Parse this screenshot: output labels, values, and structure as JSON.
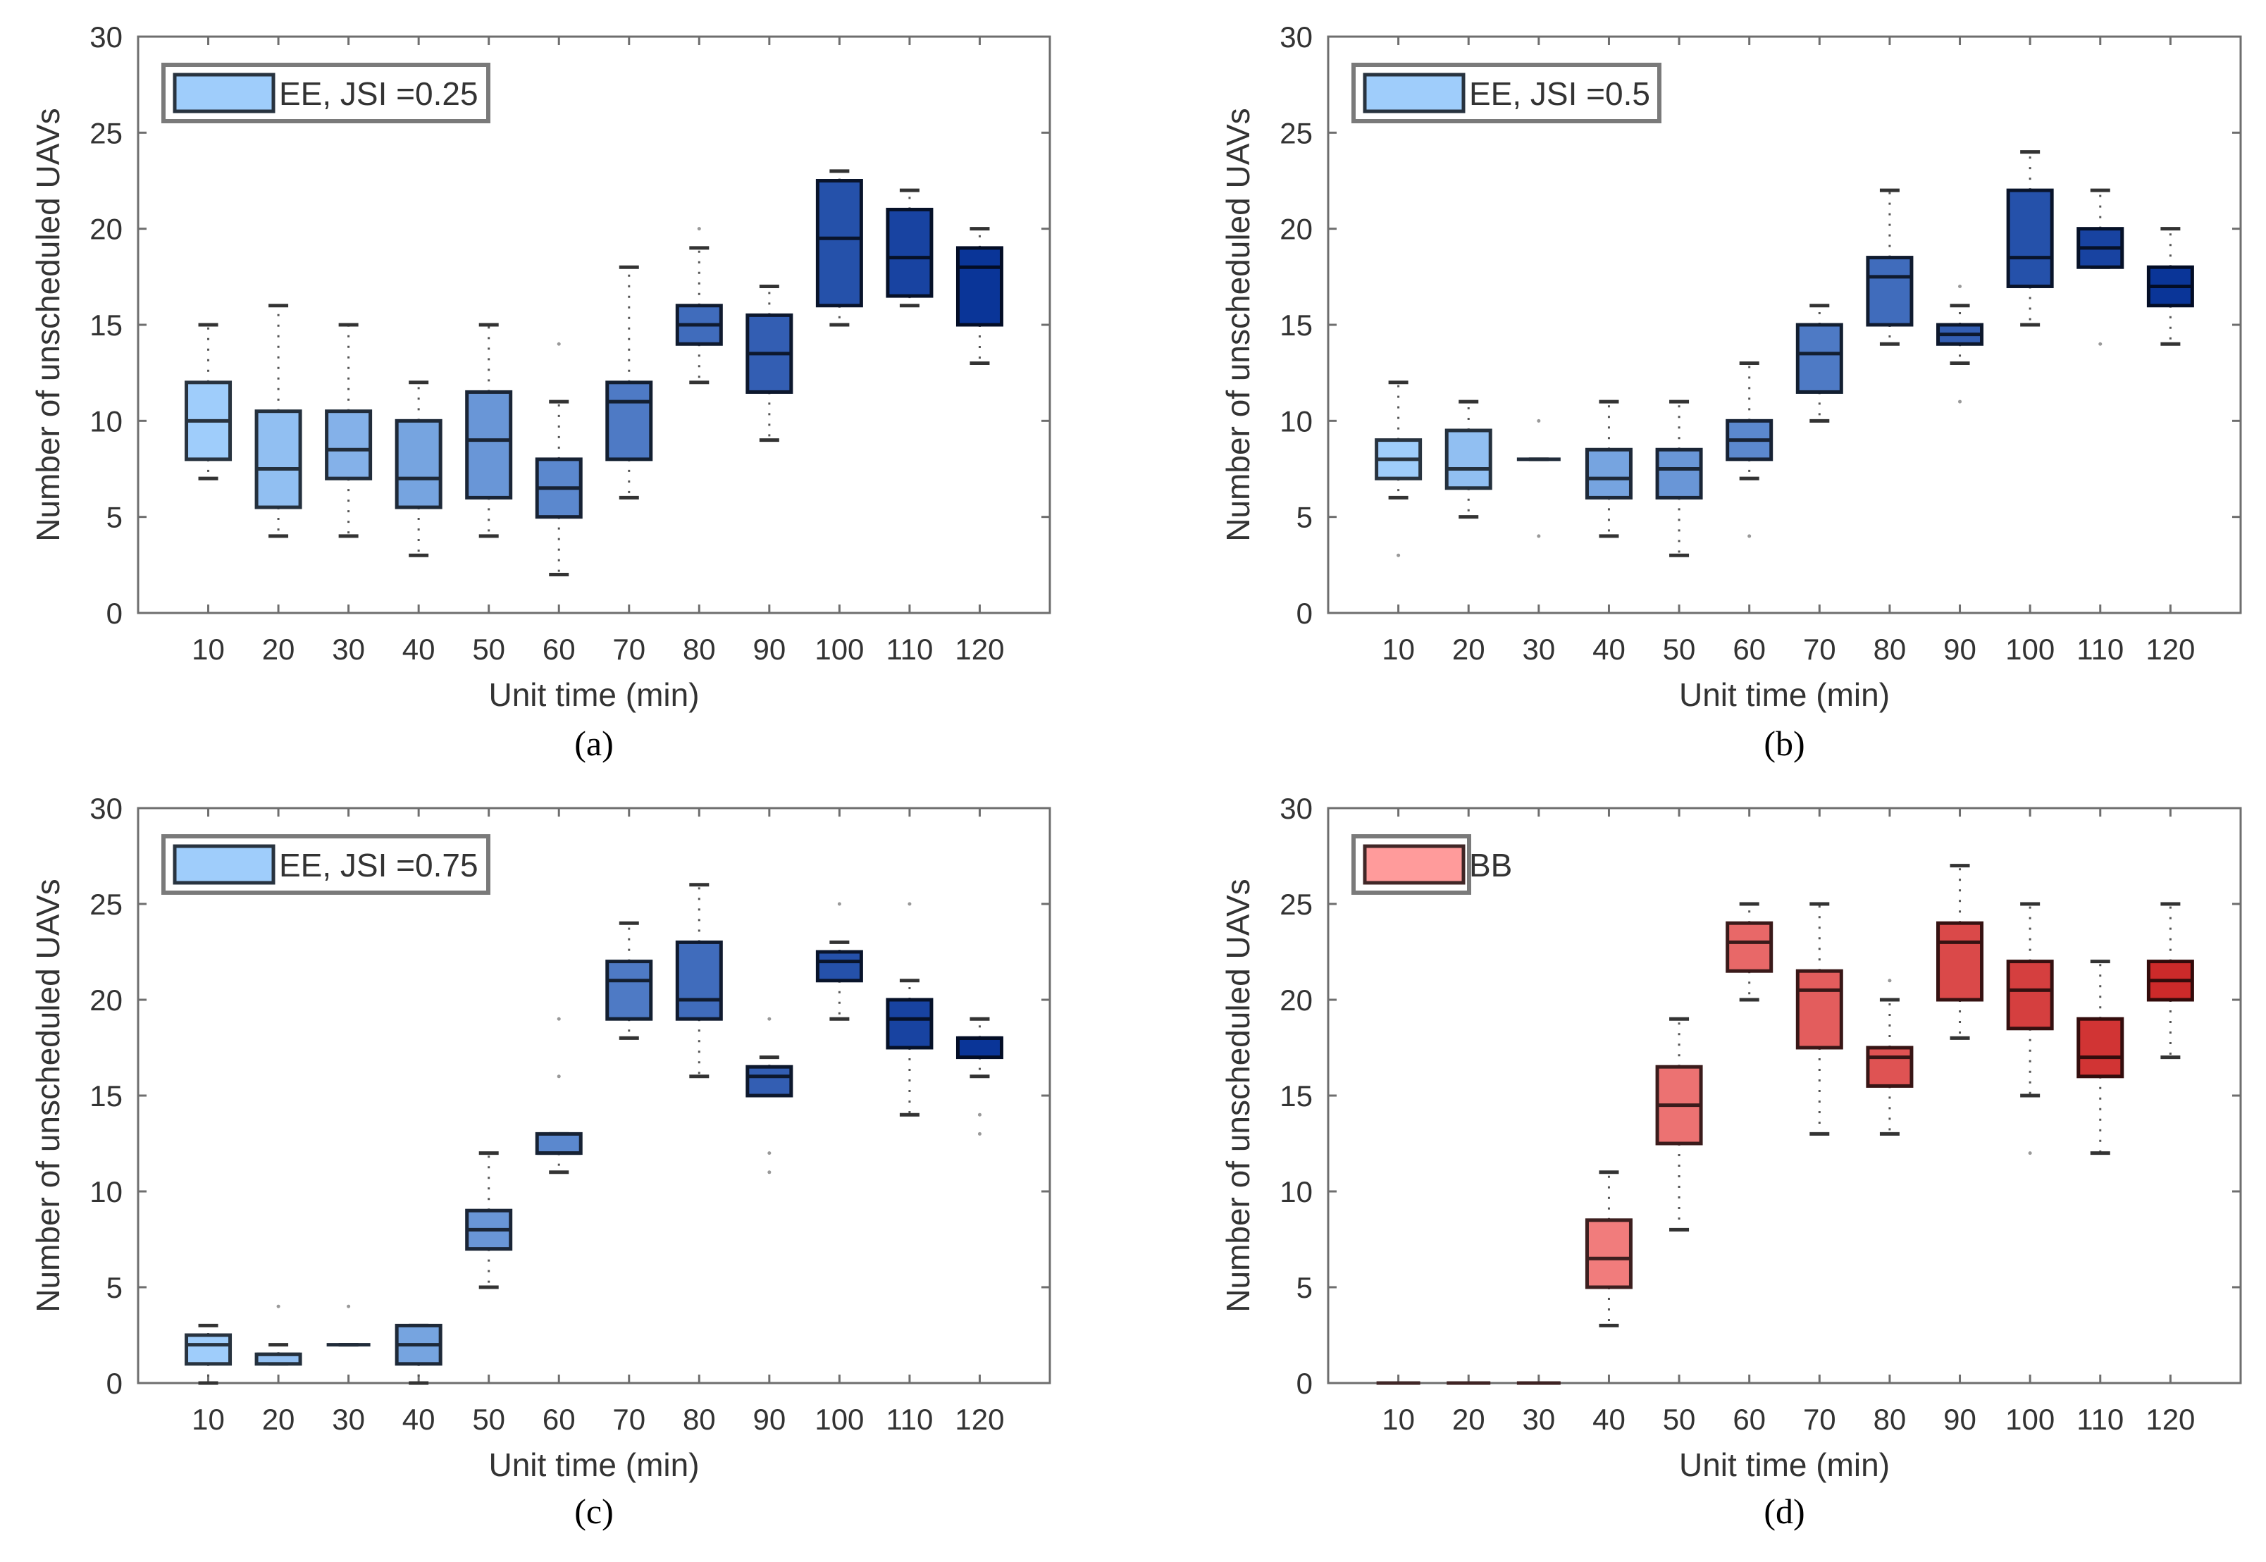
{
  "chart_data": [
    {
      "type": "box",
      "panel_label": "(a)",
      "legend": "EE, JSI =0.25",
      "legend_placement": "top-left",
      "xlabel": "Unit time (min)",
      "ylabel": "Number of unscheduled UAVs",
      "ylim": [
        0,
        30
      ],
      "yticks": [
        0,
        5,
        10,
        15,
        20,
        25,
        30
      ],
      "categories": [
        "10",
        "20",
        "30",
        "40",
        "50",
        "60",
        "70",
        "80",
        "90",
        "100",
        "110",
        "120"
      ],
      "boxes": [
        {
          "low": 7,
          "q1": 8,
          "median": 10,
          "q3": 12,
          "high": 15,
          "outliers": []
        },
        {
          "low": 4,
          "q1": 5.5,
          "median": 7.5,
          "q3": 10.5,
          "high": 16,
          "outliers": []
        },
        {
          "low": 4,
          "q1": 7,
          "median": 8.5,
          "q3": 10.5,
          "high": 15,
          "outliers": []
        },
        {
          "low": 3,
          "q1": 5.5,
          "median": 7,
          "q3": 10,
          "high": 12,
          "outliers": []
        },
        {
          "low": 4,
          "q1": 6,
          "median": 9,
          "q3": 11.5,
          "high": 15,
          "outliers": []
        },
        {
          "low": 2,
          "q1": 5,
          "median": 6.5,
          "q3": 8,
          "high": 11,
          "outliers": [
            14
          ]
        },
        {
          "low": 6,
          "q1": 8,
          "median": 11,
          "q3": 12,
          "high": 18,
          "outliers": []
        },
        {
          "low": 12,
          "q1": 14,
          "median": 15,
          "q3": 16,
          "high": 19,
          "outliers": [
            20
          ]
        },
        {
          "low": 9,
          "q1": 11.5,
          "median": 13.5,
          "q3": 15.5,
          "high": 17,
          "outliers": []
        },
        {
          "low": 15,
          "q1": 16,
          "median": 19.5,
          "q3": 22.5,
          "high": 23,
          "outliers": []
        },
        {
          "low": 16,
          "q1": 16.5,
          "median": 18.5,
          "q3": 21,
          "high": 22,
          "outliers": []
        },
        {
          "low": 13,
          "q1": 15,
          "median": 18,
          "q3": 19,
          "high": 20,
          "outliers": []
        }
      ],
      "color_light": "#9fcdfb",
      "color_dark": "#0a3598"
    },
    {
      "type": "box",
      "panel_label": "(b)",
      "legend": "EE, JSI =0.5",
      "legend_placement": "top-left",
      "xlabel": "Unit time (min)",
      "ylabel": "Number of unscheduled UAVs",
      "ylim": [
        0,
        30
      ],
      "yticks": [
        0,
        5,
        10,
        15,
        20,
        25,
        30
      ],
      "categories": [
        "10",
        "20",
        "30",
        "40",
        "50",
        "60",
        "70",
        "80",
        "90",
        "100",
        "110",
        "120"
      ],
      "boxes": [
        {
          "low": 6,
          "q1": 7,
          "median": 8,
          "q3": 9,
          "high": 12,
          "outliers": [
            3
          ]
        },
        {
          "low": 5,
          "q1": 6.5,
          "median": 7.5,
          "q3": 9.5,
          "high": 11,
          "outliers": []
        },
        {
          "low": 8,
          "q1": 8,
          "median": 8,
          "q3": 8,
          "high": 8,
          "outliers": [
            10,
            4
          ]
        },
        {
          "low": 4,
          "q1": 6,
          "median": 7,
          "q3": 8.5,
          "high": 11,
          "outliers": []
        },
        {
          "low": 3,
          "q1": 6,
          "median": 7.5,
          "q3": 8.5,
          "high": 11,
          "outliers": []
        },
        {
          "low": 7,
          "q1": 8,
          "median": 9,
          "q3": 10,
          "high": 13,
          "outliers": [
            4
          ]
        },
        {
          "low": 10,
          "q1": 11.5,
          "median": 13.5,
          "q3": 15,
          "high": 16,
          "outliers": []
        },
        {
          "low": 14,
          "q1": 15,
          "median": 17.5,
          "q3": 18.5,
          "high": 22,
          "outliers": []
        },
        {
          "low": 13,
          "q1": 14,
          "median": 14.5,
          "q3": 15,
          "high": 16,
          "outliers": [
            11,
            17
          ]
        },
        {
          "low": 15,
          "q1": 17,
          "median": 18.5,
          "q3": 22,
          "high": 24,
          "outliers": []
        },
        {
          "low": 18,
          "q1": 18,
          "median": 19,
          "q3": 20,
          "high": 22,
          "outliers": [
            14
          ]
        },
        {
          "low": 14,
          "q1": 16,
          "median": 17,
          "q3": 18,
          "high": 20,
          "outliers": []
        }
      ],
      "color_light": "#9fcdfb",
      "color_dark": "#0a3598"
    },
    {
      "type": "box",
      "panel_label": "(c)",
      "legend": "EE, JSI =0.75",
      "legend_placement": "top-left",
      "xlabel": "Unit time (min)",
      "ylabel": "Number of unscheduled UAVs",
      "ylim": [
        0,
        30
      ],
      "yticks": [
        0,
        5,
        10,
        15,
        20,
        25,
        30
      ],
      "categories": [
        "10",
        "20",
        "30",
        "40",
        "50",
        "60",
        "70",
        "80",
        "90",
        "100",
        "110",
        "120"
      ],
      "boxes": [
        {
          "low": 0,
          "q1": 1,
          "median": 2,
          "q3": 2.5,
          "high": 3,
          "outliers": []
        },
        {
          "low": 1,
          "q1": 1,
          "median": 1.5,
          "q3": 1.5,
          "high": 2,
          "outliers": [
            4
          ]
        },
        {
          "low": 2,
          "q1": 2,
          "median": 2,
          "q3": 2,
          "high": 2,
          "outliers": [
            4
          ]
        },
        {
          "low": 0,
          "q1": 1,
          "median": 2,
          "q3": 3,
          "high": 3,
          "outliers": []
        },
        {
          "low": 5,
          "q1": 7,
          "median": 8,
          "q3": 9,
          "high": 12,
          "outliers": []
        },
        {
          "low": 11,
          "q1": 12,
          "median": 12,
          "q3": 13,
          "high": 13,
          "outliers": [
            16,
            19
          ]
        },
        {
          "low": 18,
          "q1": 19,
          "median": 21,
          "q3": 22,
          "high": 24,
          "outliers": []
        },
        {
          "low": 16,
          "q1": 19,
          "median": 20,
          "q3": 23,
          "high": 26,
          "outliers": []
        },
        {
          "low": 15,
          "q1": 15,
          "median": 16,
          "q3": 16.5,
          "high": 17,
          "outliers": [
            11,
            12,
            19
          ]
        },
        {
          "low": 19,
          "q1": 21,
          "median": 22,
          "q3": 22.5,
          "high": 23,
          "outliers": [
            25
          ]
        },
        {
          "low": 14,
          "q1": 17.5,
          "median": 19,
          "q3": 20,
          "high": 21,
          "outliers": [
            25
          ]
        },
        {
          "low": 16,
          "q1": 17,
          "median": 18,
          "q3": 18,
          "high": 19,
          "outliers": [
            13,
            14
          ]
        }
      ],
      "color_light": "#9fcdfb",
      "color_dark": "#0a3598"
    },
    {
      "type": "box",
      "panel_label": "(d)",
      "legend": "BB",
      "legend_placement": "top-left",
      "xlabel": "Unit time (min)",
      "ylabel": "Number of unscheduled UAVs",
      "ylim": [
        0,
        30
      ],
      "yticks": [
        0,
        5,
        10,
        15,
        20,
        25,
        30
      ],
      "categories": [
        "10",
        "20",
        "30",
        "40",
        "50",
        "60",
        "70",
        "80",
        "90",
        "100",
        "110",
        "120"
      ],
      "boxes": [
        {
          "low": 0,
          "q1": 0,
          "median": 0,
          "q3": 0,
          "high": 0,
          "outliers": []
        },
        {
          "low": 0,
          "q1": 0,
          "median": 0,
          "q3": 0,
          "high": 0,
          "outliers": []
        },
        {
          "low": 0,
          "q1": 0,
          "median": 0,
          "q3": 0,
          "high": 0,
          "outliers": []
        },
        {
          "low": 3,
          "q1": 5,
          "median": 6.5,
          "q3": 8.5,
          "high": 11,
          "outliers": []
        },
        {
          "low": 8,
          "q1": 12.5,
          "median": 14.5,
          "q3": 16.5,
          "high": 19,
          "outliers": []
        },
        {
          "low": 20,
          "q1": 21.5,
          "median": 23,
          "q3": 24,
          "high": 25,
          "outliers": []
        },
        {
          "low": 13,
          "q1": 17.5,
          "median": 20.5,
          "q3": 21.5,
          "high": 25,
          "outliers": []
        },
        {
          "low": 13,
          "q1": 15.5,
          "median": 17,
          "q3": 17.5,
          "high": 20,
          "outliers": [
            21
          ]
        },
        {
          "low": 18,
          "q1": 20,
          "median": 23,
          "q3": 24,
          "high": 27,
          "outliers": []
        },
        {
          "low": 15,
          "q1": 18.5,
          "median": 20.5,
          "q3": 22,
          "high": 25,
          "outliers": [
            12
          ]
        },
        {
          "low": 12,
          "q1": 16,
          "median": 17,
          "q3": 19,
          "high": 22,
          "outliers": []
        },
        {
          "low": 17,
          "q1": 20,
          "median": 21,
          "q3": 22,
          "high": 25,
          "outliers": []
        }
      ],
      "color_light": "#ff9b9b",
      "color_dark": "#cc2a2a"
    }
  ]
}
